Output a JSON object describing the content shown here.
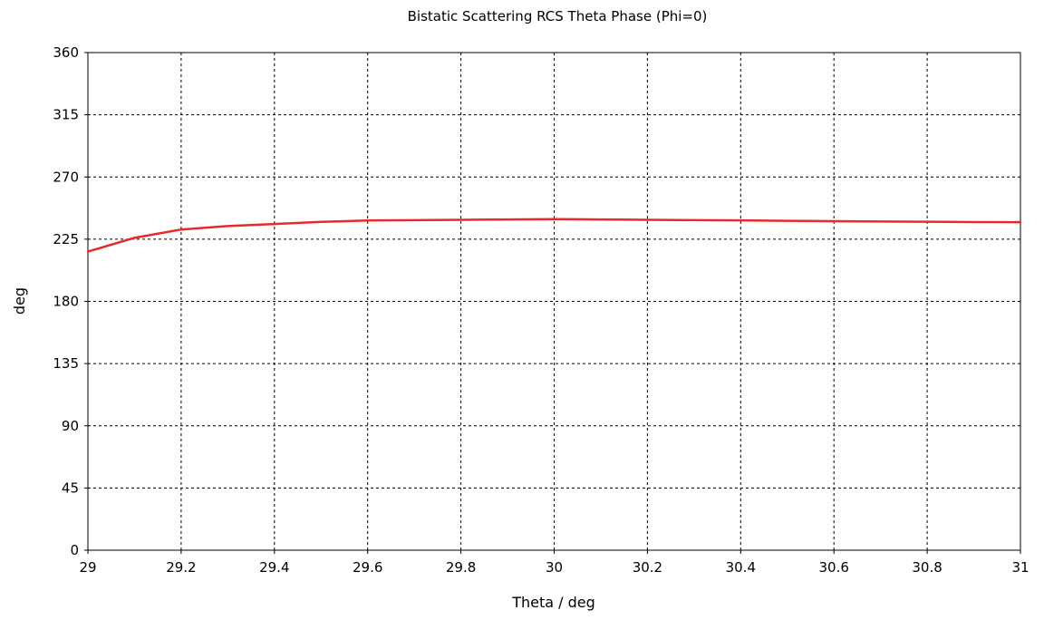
{
  "chart_data": {
    "type": "line",
    "title": "Bistatic Scattering RCS Theta Phase (Phi=0)",
    "xlabel": "Theta / deg",
    "ylabel": "deg",
    "xlim": [
      29,
      31
    ],
    "ylim": [
      0,
      360
    ],
    "x_ticks": [
      "29",
      "29.2",
      "29.4",
      "29.6",
      "29.8",
      "30",
      "30.2",
      "30.4",
      "30.6",
      "30.8",
      "31"
    ],
    "y_ticks": [
      "0",
      "45",
      "90",
      "135",
      "180",
      "225",
      "270",
      "315",
      "360"
    ],
    "grid": true,
    "series": [
      {
        "color": "#e8282a",
        "x": [
          29.0,
          29.1,
          29.2,
          29.3,
          29.4,
          29.5,
          29.6,
          29.7,
          29.8,
          29.9,
          30.0,
          30.1,
          30.2,
          30.3,
          30.4,
          30.5,
          30.6,
          30.7,
          30.8,
          30.9,
          31.0
        ],
        "y": [
          216,
          226,
          232,
          234.5,
          236,
          237.5,
          238.5,
          238.8,
          239,
          239.3,
          239.5,
          239.3,
          239,
          238.8,
          238.6,
          238.3,
          238,
          237.8,
          237.6,
          237.4,
          237.3
        ]
      }
    ]
  }
}
